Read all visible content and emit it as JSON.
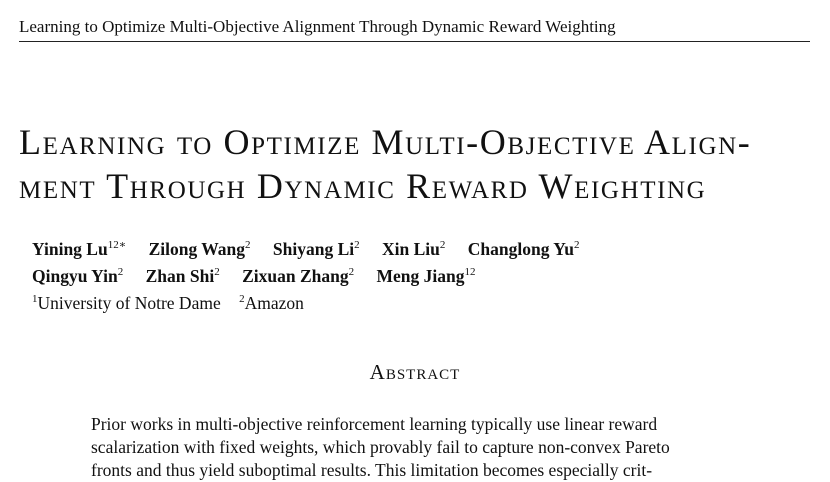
{
  "running_header": "Learning to Optimize Multi-Objective Alignment Through Dynamic Reward Weighting",
  "title_lines": [
    "Learning to Optimize Multi-Objective Align-",
    "ment Through Dynamic Reward Weighting"
  ],
  "authors_row1": [
    {
      "name": "Yining Lu",
      "sup": "12∗"
    },
    {
      "name": "Zilong Wang",
      "sup": "2"
    },
    {
      "name": "Shiyang Li",
      "sup": "2"
    },
    {
      "name": "Xin Liu",
      "sup": "2"
    },
    {
      "name": "Changlong Yu",
      "sup": "2"
    }
  ],
  "authors_row2": [
    {
      "name": "Qingyu Yin",
      "sup": "2"
    },
    {
      "name": "Zhan Shi",
      "sup": "2"
    },
    {
      "name": "Zixuan Zhang",
      "sup": "2"
    },
    {
      "name": "Meng Jiang",
      "sup": "12"
    }
  ],
  "affiliations": [
    {
      "sup": "1",
      "name": "University of Notre Dame"
    },
    {
      "sup": "2",
      "name": "Amazon"
    }
  ],
  "abstract_heading": "Abstract",
  "abstract_lines": [
    "Prior works in multi-objective reinforcement learning typically use linear reward",
    "scalarization with fixed weights, which provably fail to capture non-convex Pareto",
    "fronts and thus yield suboptimal results. This limitation becomes especially crit-"
  ]
}
